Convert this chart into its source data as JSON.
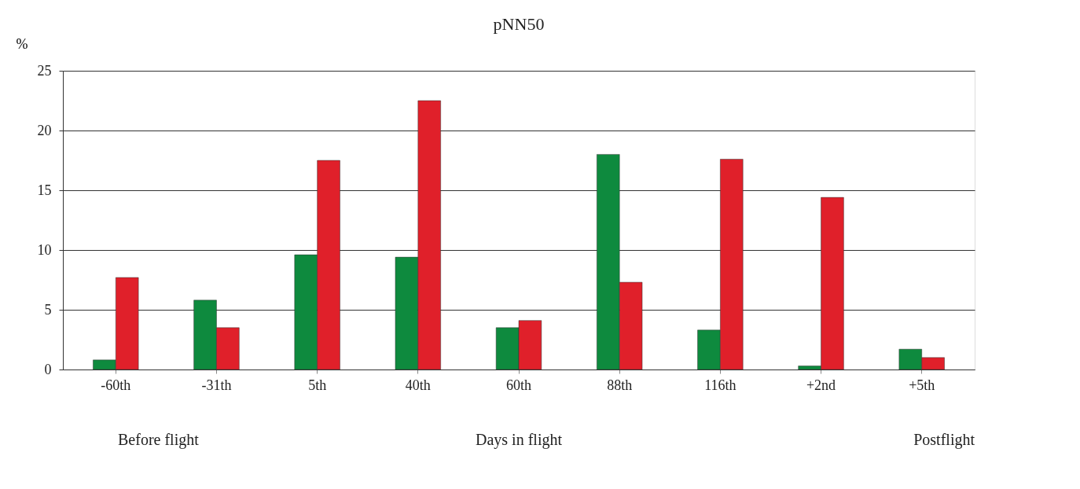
{
  "chart_data": {
    "type": "bar",
    "title": "pNN50",
    "ylabel": "%",
    "categories": [
      "-60th",
      "-31th",
      "5th",
      "40th",
      "60th",
      "88th",
      "116th",
      "+2nd",
      "+5th"
    ],
    "series": [
      {
        "color": "#0e8a3e",
        "values": [
          0.8,
          5.8,
          9.6,
          9.4,
          3.5,
          18.0,
          3.3,
          0.3,
          1.7
        ]
      },
      {
        "color": "#e0202a",
        "values": [
          7.7,
          3.5,
          17.5,
          22.5,
          4.1,
          7.3,
          17.6,
          14.4,
          1.0
        ]
      }
    ],
    "ylim": [
      0,
      25
    ],
    "yticks": [
      0,
      5,
      10,
      15,
      20,
      25
    ],
    "grid": "y",
    "legend": false,
    "annotations": [
      "Before flight",
      "Days in flight",
      "Postflight"
    ]
  }
}
